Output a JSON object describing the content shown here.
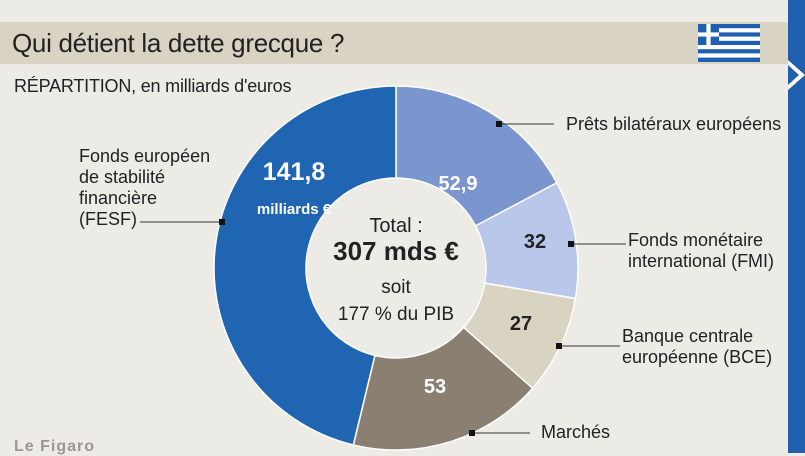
{
  "title": "Qui détient la dette grecque ?",
  "subtitle": "RÉPARTITION, en milliards d'euros",
  "center": {
    "line1": "Total :",
    "line2": "307 mds €",
    "line3": "soit",
    "line4": "177 % du PIB"
  },
  "source": "Le Figaro",
  "icons": {
    "flag": "greek-flag-icon",
    "arrow": "right-arrow-icon"
  },
  "chart_data": {
    "type": "pie",
    "variant": "donut",
    "total": 307,
    "slices": [
      {
        "label": "Prêts bilatéraux européens",
        "value": 52.9,
        "display": "52,9",
        "color": "#7b95cf",
        "text_color": "#ffffff"
      },
      {
        "label": "Fonds monétaire international (FMI)",
        "value": 32,
        "display": "32",
        "color": "#b8c7ea",
        "text_color": "#222222"
      },
      {
        "label": "Banque centrale européenne (BCE)",
        "value": 27,
        "display": "27",
        "color": "#d9d3c1",
        "text_color": "#222222"
      },
      {
        "label": "Marchés",
        "value": 53,
        "display": "53",
        "color": "#8b7f72",
        "text_color": "#ffffff"
      },
      {
        "label": "Fonds européen de stabilité financière (FESF)",
        "value": 141.8,
        "display": "141,8",
        "unit": "milliards €",
        "color": "#1f65b2",
        "text_color": "#ffffff"
      }
    ],
    "labels": [
      "Prêts bilatéraux européens",
      "Fonds monétaire\ninternational (FMI)",
      "Banque centrale\neuropéenne (BCE)",
      "Marchés",
      "Fonds européen\nde stabilité\nfinancière\n(FESF)"
    ]
  }
}
